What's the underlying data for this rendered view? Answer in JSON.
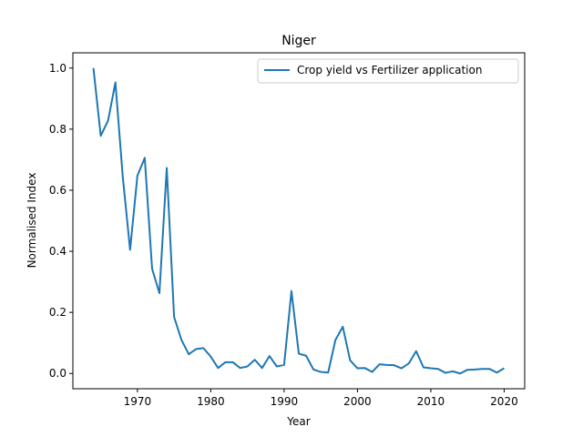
{
  "chart_data": {
    "type": "line",
    "title": "Niger",
    "xlabel": "Year",
    "ylabel": "Normalised Index",
    "xlim": [
      1961.2,
      2022.8
    ],
    "ylim": [
      -0.05,
      1.05
    ],
    "xticks": [
      1970,
      1980,
      1990,
      2000,
      2010,
      2020
    ],
    "yticks": [
      0.0,
      0.2,
      0.4,
      0.6,
      0.8,
      1.0
    ],
    "xtick_labels": [
      "1970",
      "1980",
      "1990",
      "2000",
      "2010",
      "2020"
    ],
    "ytick_labels": [
      "0.0",
      "0.2",
      "0.4",
      "0.6",
      "0.8",
      "1.0"
    ],
    "grid": false,
    "legend_position": "top-right",
    "series": [
      {
        "name": "Crop yield vs Fertilizer application",
        "color": "#1f77b4",
        "x": [
          1964,
          1965,
          1966,
          1967,
          1968,
          1969,
          1970,
          1971,
          1972,
          1973,
          1974,
          1975,
          1976,
          1977,
          1978,
          1979,
          1980,
          1981,
          1982,
          1983,
          1984,
          1985,
          1986,
          1987,
          1988,
          1989,
          1990,
          1991,
          1992,
          1993,
          1994,
          1995,
          1996,
          1997,
          1998,
          1999,
          2000,
          2001,
          2002,
          2003,
          2004,
          2005,
          2006,
          2007,
          2008,
          2009,
          2010,
          2011,
          2012,
          2013,
          2014,
          2015,
          2016,
          2017,
          2018,
          2019,
          2020
        ],
        "y": [
          1.0,
          0.778,
          0.828,
          0.953,
          0.645,
          0.405,
          0.648,
          0.706,
          0.343,
          0.263,
          0.673,
          0.185,
          0.11,
          0.063,
          0.08,
          0.083,
          0.055,
          0.018,
          0.037,
          0.037,
          0.018,
          0.023,
          0.045,
          0.018,
          0.057,
          0.023,
          0.028,
          0.27,
          0.065,
          0.058,
          0.013,
          0.005,
          0.003,
          0.11,
          0.153,
          0.043,
          0.017,
          0.018,
          0.005,
          0.03,
          0.028,
          0.027,
          0.017,
          0.033,
          0.073,
          0.02,
          0.017,
          0.015,
          0.002,
          0.007,
          0.0,
          0.012,
          0.013,
          0.015,
          0.015,
          0.003,
          0.017
        ]
      }
    ]
  }
}
